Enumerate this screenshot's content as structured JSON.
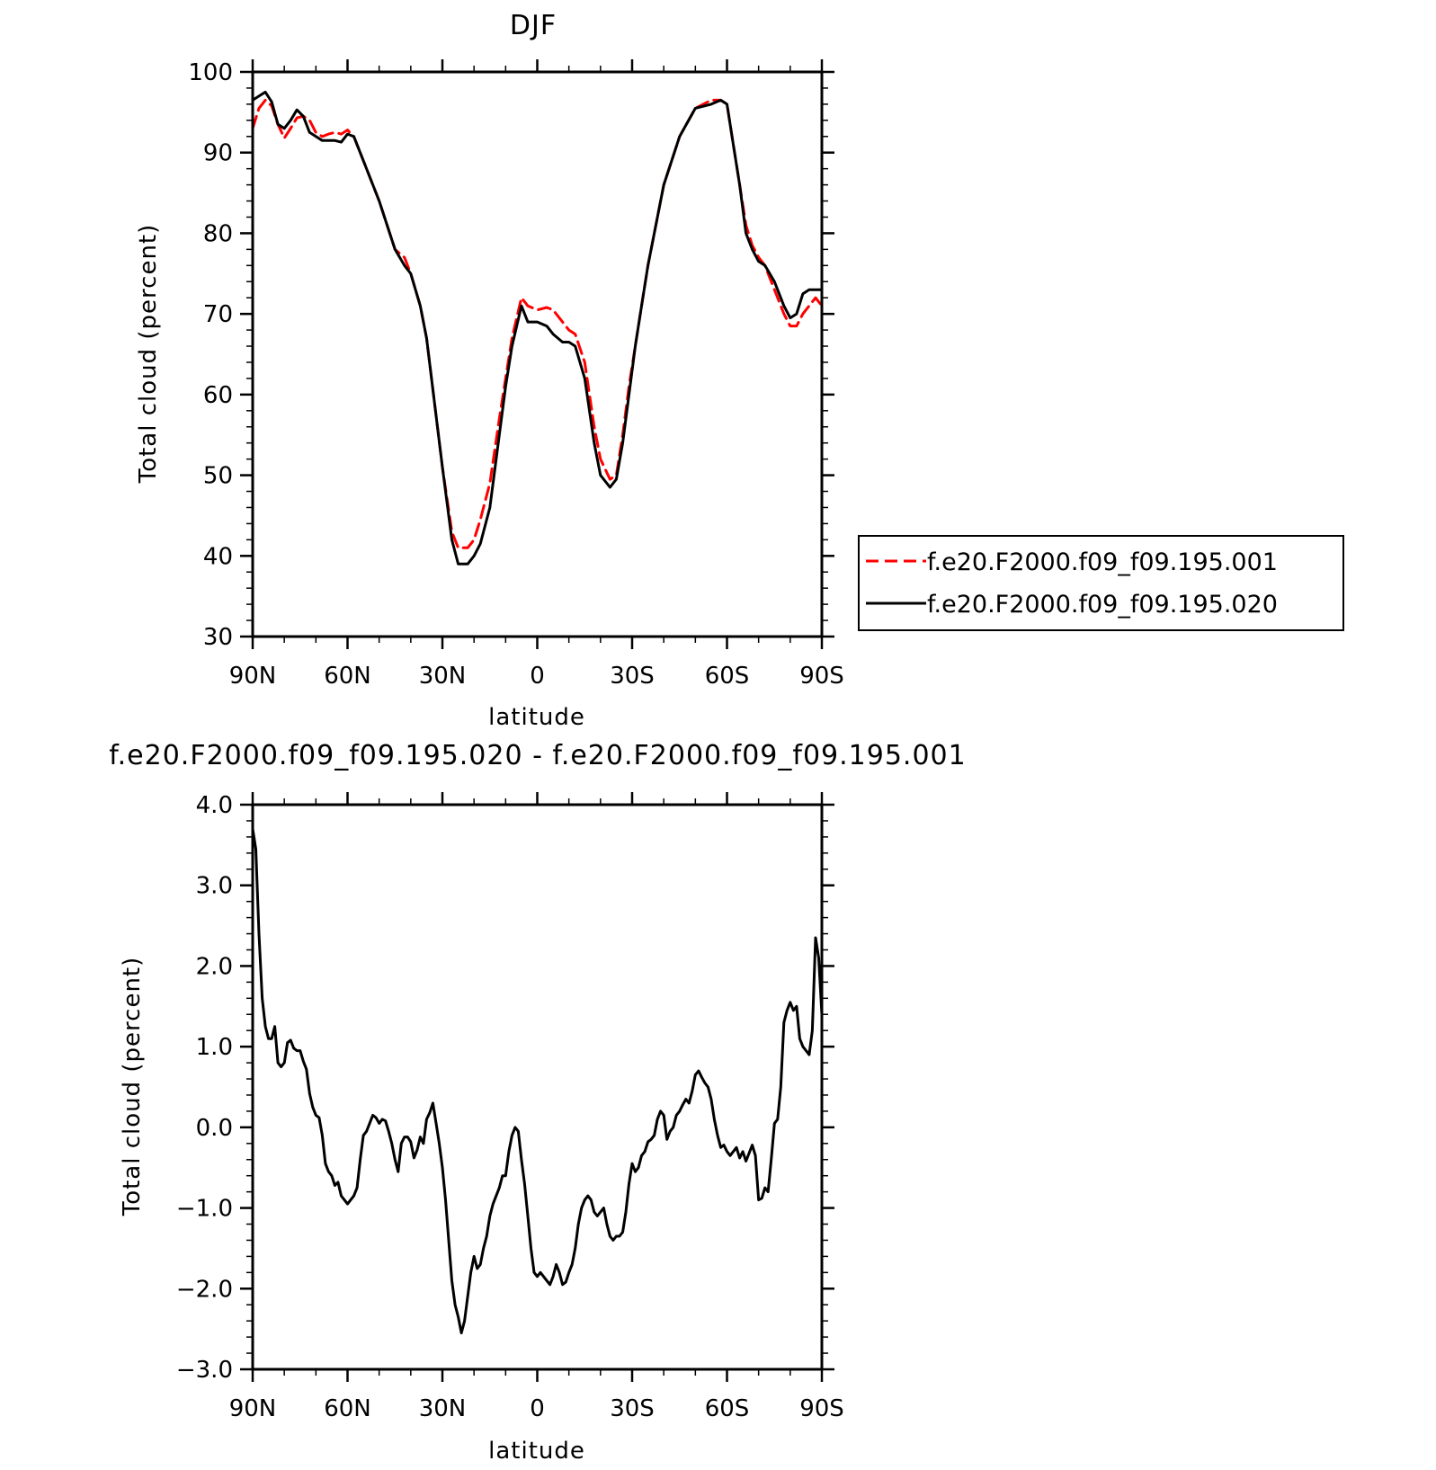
{
  "chart_data": [
    {
      "type": "line",
      "title": "DJF",
      "xlabel": "latitude",
      "ylabel": "Total cloud (percent)",
      "xlim": [
        90,
        -90
      ],
      "ylim": [
        30,
        100
      ],
      "xticks": [
        90,
        60,
        30,
        0,
        -30,
        -60,
        -90
      ],
      "xtick_labels": [
        "90N",
        "60N",
        "30N",
        "0",
        "30S",
        "60S",
        "90S"
      ],
      "yticks": [
        30,
        40,
        50,
        60,
        70,
        80,
        90,
        100
      ],
      "ytick_labels": [
        "30",
        "40",
        "50",
        "60",
        "70",
        "80",
        "90",
        "100"
      ],
      "grid": false,
      "legend_position": "right",
      "series": [
        {
          "name": "f.e20.F2000.f09_f09.195.001",
          "color": "#ff0000",
          "dash": "dashed",
          "x": [
            90,
            88,
            86,
            84,
            82,
            80,
            78,
            76,
            74,
            72,
            70,
            68,
            66,
            64,
            62,
            60,
            58,
            55,
            50,
            45,
            42,
            40,
            37,
            35,
            30,
            27,
            25,
            22,
            20,
            18,
            15,
            12,
            10,
            8,
            5,
            3,
            0,
            -3,
            -5,
            -8,
            -10,
            -12,
            -15,
            -18,
            -20,
            -23,
            -25,
            -27,
            -29,
            -31,
            -33,
            -35,
            -40,
            -45,
            -50,
            -55,
            -58,
            -60,
            -62,
            -64,
            -66,
            -68,
            -70,
            -72,
            -75,
            -78,
            -80,
            -82,
            -84,
            -86,
            -88,
            -90
          ],
          "y": [
            93,
            95.5,
            96.5,
            95.8,
            93.5,
            91.8,
            93,
            94.3,
            94.5,
            94,
            92.5,
            92,
            92.3,
            92.5,
            92.3,
            92.8,
            92,
            89,
            84,
            78,
            77,
            75,
            71,
            67,
            51,
            43,
            41,
            41,
            42,
            44.5,
            49,
            57,
            62,
            67,
            72,
            71,
            70.5,
            70.8,
            70.5,
            69,
            68,
            67.5,
            64,
            56,
            52,
            49.5,
            50,
            55,
            61,
            66,
            71,
            76,
            86,
            92,
            95.5,
            96.5,
            96.5,
            96,
            91,
            86,
            81,
            78.5,
            77,
            76,
            73,
            70,
            68.5,
            68.5,
            70,
            71,
            72,
            71
          ]
        },
        {
          "name": "f.e20.F2000.f09_f09.195.020",
          "color": "#000000",
          "dash": "solid",
          "x": [
            90,
            88,
            86,
            84,
            82,
            80,
            78,
            76,
            74,
            72,
            70,
            68,
            66,
            64,
            62,
            60,
            58,
            55,
            50,
            45,
            42,
            40,
            37,
            35,
            30,
            27,
            25,
            22,
            20,
            18,
            15,
            12,
            10,
            8,
            5,
            3,
            0,
            -3,
            -5,
            -8,
            -10,
            -12,
            -15,
            -18,
            -20,
            -23,
            -25,
            -27,
            -29,
            -31,
            -33,
            -35,
            -40,
            -45,
            -50,
            -55,
            -58,
            -60,
            -62,
            -64,
            -66,
            -68,
            -70,
            -72,
            -75,
            -78,
            -80,
            -82,
            -84,
            -86,
            -88,
            -90
          ],
          "y": [
            96.5,
            97,
            97.5,
            96.3,
            93.5,
            93,
            94,
            95.3,
            94.5,
            92.5,
            92,
            91.5,
            91.5,
            91.5,
            91.3,
            92.3,
            92,
            89,
            84,
            78,
            76,
            75,
            71,
            67,
            51,
            42,
            39,
            39,
            40,
            41.5,
            46,
            55,
            61,
            66,
            71,
            69,
            69,
            68.5,
            67.5,
            66.5,
            66.5,
            66,
            62,
            54,
            50,
            48.5,
            49.5,
            54,
            60,
            66,
            71,
            76,
            86,
            92,
            95.5,
            96,
            96.5,
            96,
            91,
            86,
            80,
            78,
            76.5,
            76,
            74,
            71,
            69.5,
            70,
            72.5,
            73,
            73,
            73
          ]
        }
      ]
    },
    {
      "type": "line",
      "title": "f.e20.F2000.f09_f09.195.020 - f.e20.F2000.f09_f09.195.001",
      "xlabel": "latitude",
      "ylabel": "Total cloud (percent)",
      "xlim": [
        90,
        -90
      ],
      "ylim": [
        -3,
        4
      ],
      "xticks": [
        90,
        60,
        30,
        0,
        -30,
        -60,
        -90
      ],
      "xtick_labels": [
        "90N",
        "60N",
        "30N",
        "0",
        "30S",
        "60S",
        "90S"
      ],
      "yticks": [
        -3,
        -2,
        -1,
        0,
        1,
        2,
        3,
        4
      ],
      "ytick_labels": [
        "−3.0",
        "−2.0",
        "−1.0",
        "0.0",
        "1.0",
        "2.0",
        "3.0",
        "4.0"
      ],
      "grid": false,
      "series": [
        {
          "color": "#000000",
          "dash": "solid",
          "x": [
            90,
            89,
            88,
            87,
            86,
            85,
            84,
            83,
            82,
            81,
            80,
            79,
            78,
            77,
            76,
            75,
            74,
            73,
            72,
            71,
            70,
            69,
            68,
            67,
            66,
            65,
            64,
            63,
            62,
            61,
            60,
            59,
            58,
            57,
            56,
            55,
            54,
            53,
            52,
            51,
            50,
            49,
            48,
            47,
            46,
            45,
            44,
            43,
            42,
            41,
            40,
            39,
            38,
            37,
            36,
            35,
            34,
            33,
            32,
            31,
            30,
            29,
            28,
            27,
            26,
            25,
            24,
            23,
            22,
            21,
            20,
            19,
            18,
            17,
            16,
            15,
            14,
            13,
            12,
            11,
            10,
            9,
            8,
            7,
            6,
            5,
            4,
            3,
            2,
            1,
            0,
            -1,
            -2,
            -3,
            -4,
            -5,
            -6,
            -7,
            -8,
            -9,
            -10,
            -11,
            -12,
            -13,
            -14,
            -15,
            -16,
            -17,
            -18,
            -19,
            -20,
            -21,
            -22,
            -23,
            -24,
            -25,
            -26,
            -27,
            -28,
            -29,
            -30,
            -31,
            -32,
            -33,
            -34,
            -35,
            -36,
            -37,
            -38,
            -39,
            -40,
            -41,
            -42,
            -43,
            -44,
            -45,
            -46,
            -47,
            -48,
            -49,
            -50,
            -51,
            -52,
            -53,
            -54,
            -55,
            -56,
            -57,
            -58,
            -59,
            -60,
            -61,
            -62,
            -63,
            -64,
            -65,
            -66,
            -67,
            -68,
            -69,
            -70,
            -71,
            -72,
            -73,
            -74,
            -75,
            -76,
            -77,
            -78,
            -79,
            -80,
            -81,
            -82,
            -83,
            -84,
            -85,
            -86,
            -87,
            -88,
            -89,
            -90
          ],
          "y": [
            3.7,
            3.45,
            2.4,
            1.6,
            1.25,
            1.1,
            1.1,
            1.25,
            0.8,
            0.75,
            0.8,
            1.05,
            1.08,
            0.98,
            0.95,
            0.95,
            0.82,
            0.72,
            0.42,
            0.25,
            0.15,
            0.12,
            -0.1,
            -0.45,
            -0.55,
            -0.6,
            -0.72,
            -0.68,
            -0.85,
            -0.9,
            -0.95,
            -0.9,
            -0.85,
            -0.75,
            -0.4,
            -0.1,
            -0.05,
            0.05,
            0.15,
            0.12,
            0.05,
            0.1,
            0.08,
            -0.05,
            -0.2,
            -0.4,
            -0.55,
            -0.2,
            -0.12,
            -0.12,
            -0.18,
            -0.38,
            -0.28,
            -0.12,
            -0.2,
            0.1,
            0.18,
            0.3,
            0.05,
            -0.2,
            -0.5,
            -0.9,
            -1.4,
            -1.9,
            -2.2,
            -2.35,
            -2.55,
            -2.4,
            -2.1,
            -1.8,
            -1.6,
            -1.75,
            -1.7,
            -1.5,
            -1.35,
            -1.1,
            -0.95,
            -0.85,
            -0.75,
            -0.6,
            -0.6,
            -0.3,
            -0.1,
            0.0,
            -0.05,
            -0.4,
            -0.7,
            -1.1,
            -1.5,
            -1.8,
            -1.85,
            -1.8,
            -1.85,
            -1.9,
            -1.95,
            -1.85,
            -1.7,
            -1.8,
            -1.95,
            -1.92,
            -1.8,
            -1.7,
            -1.5,
            -1.2,
            -1.0,
            -0.9,
            -0.85,
            -0.9,
            -1.05,
            -1.1,
            -1.05,
            -1.0,
            -1.2,
            -1.35,
            -1.4,
            -1.35,
            -1.35,
            -1.3,
            -1.05,
            -0.7,
            -0.45,
            -0.55,
            -0.5,
            -0.35,
            -0.3,
            -0.18,
            -0.15,
            -0.1,
            0.1,
            0.2,
            0.15,
            -0.15,
            -0.05,
            0.0,
            0.15,
            0.2,
            0.28,
            0.35,
            0.3,
            0.45,
            0.65,
            0.7,
            0.62,
            0.55,
            0.5,
            0.35,
            0.1,
            -0.1,
            -0.25,
            -0.22,
            -0.3,
            -0.35,
            -0.3,
            -0.25,
            -0.38,
            -0.3,
            -0.42,
            -0.32,
            -0.22,
            -0.35,
            -0.9,
            -0.88,
            -0.75,
            -0.8,
            -0.4,
            0.05,
            0.1,
            0.5,
            1.3,
            1.45,
            1.55,
            1.45,
            1.5,
            1.1,
            1.0,
            0.95,
            0.9,
            1.2,
            2.35,
            2.1,
            1.4
          ]
        }
      ]
    }
  ],
  "legend": {
    "entries": [
      {
        "label": "f.e20.F2000.f09_f09.195.001",
        "color": "#ff0000",
        "dash": "dashed"
      },
      {
        "label": "f.e20.F2000.f09_f09.195.020",
        "color": "#000000",
        "dash": "solid"
      }
    ]
  }
}
